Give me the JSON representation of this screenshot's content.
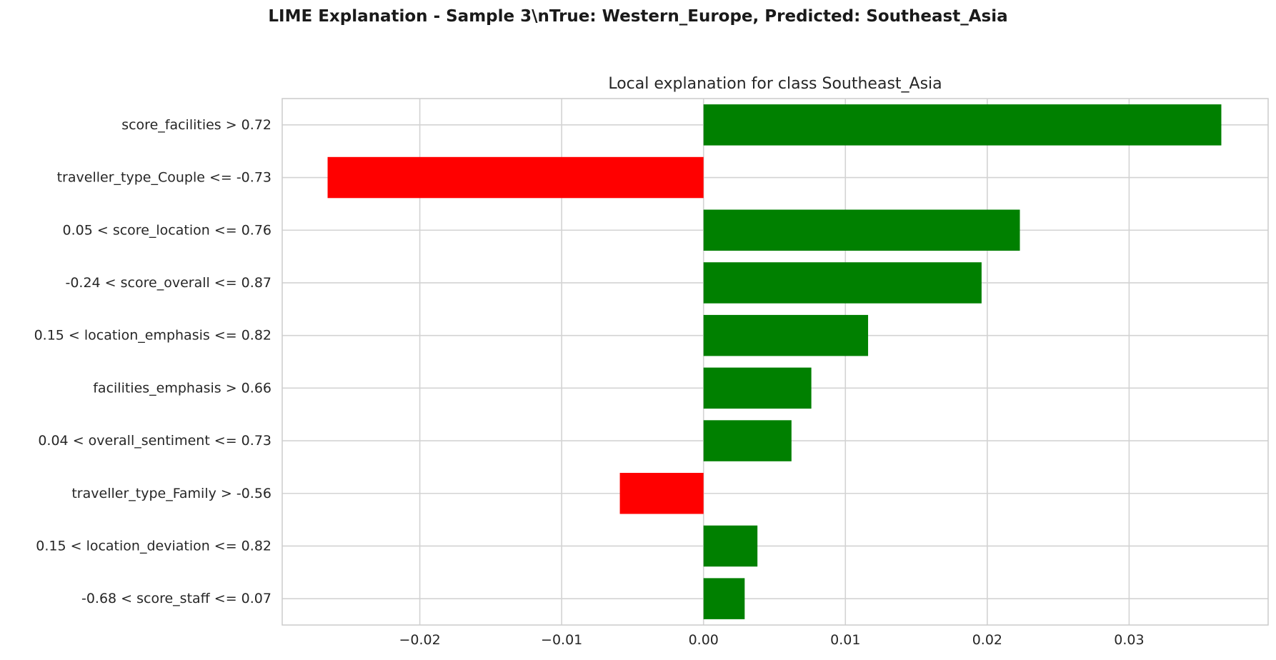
{
  "suptitle": "LIME Explanation - Sample 3\\nTrue: Western_Europe, Predicted: Southeast_Asia",
  "chart_data": {
    "type": "bar",
    "orientation": "horizontal",
    "title": "Local explanation for class Southeast_Asia",
    "xlabel": "",
    "ylabel": "",
    "xlim": [
      -0.0297,
      0.0398
    ],
    "xticks": [
      -0.02,
      -0.01,
      0.0,
      0.01,
      0.02,
      0.03
    ],
    "xtick_labels": [
      "−0.02",
      "−0.01",
      "0.00",
      "0.01",
      "0.02",
      "0.03"
    ],
    "grid": true,
    "categories": [
      "score_facilities > 0.72",
      "traveller_type_Couple <= -0.73",
      "0.05 < score_location <= 0.76",
      "-0.24 < score_overall <= 0.87",
      "0.15 < location_emphasis <= 0.82",
      "facilities_emphasis > 0.66",
      "0.04 < overall_sentiment <= 0.73",
      "traveller_type_Family > -0.56",
      "0.15 < location_deviation <= 0.82",
      "-0.68 < score_staff <= 0.07"
    ],
    "values": [
      0.0365,
      -0.0265,
      0.0223,
      0.0196,
      0.0116,
      0.0076,
      0.0062,
      -0.0059,
      0.0038,
      0.0029
    ],
    "colors": {
      "positive": "#008000",
      "negative": "#ff0000",
      "grid": "#d3d3d3",
      "frame": "#cccccc"
    }
  }
}
